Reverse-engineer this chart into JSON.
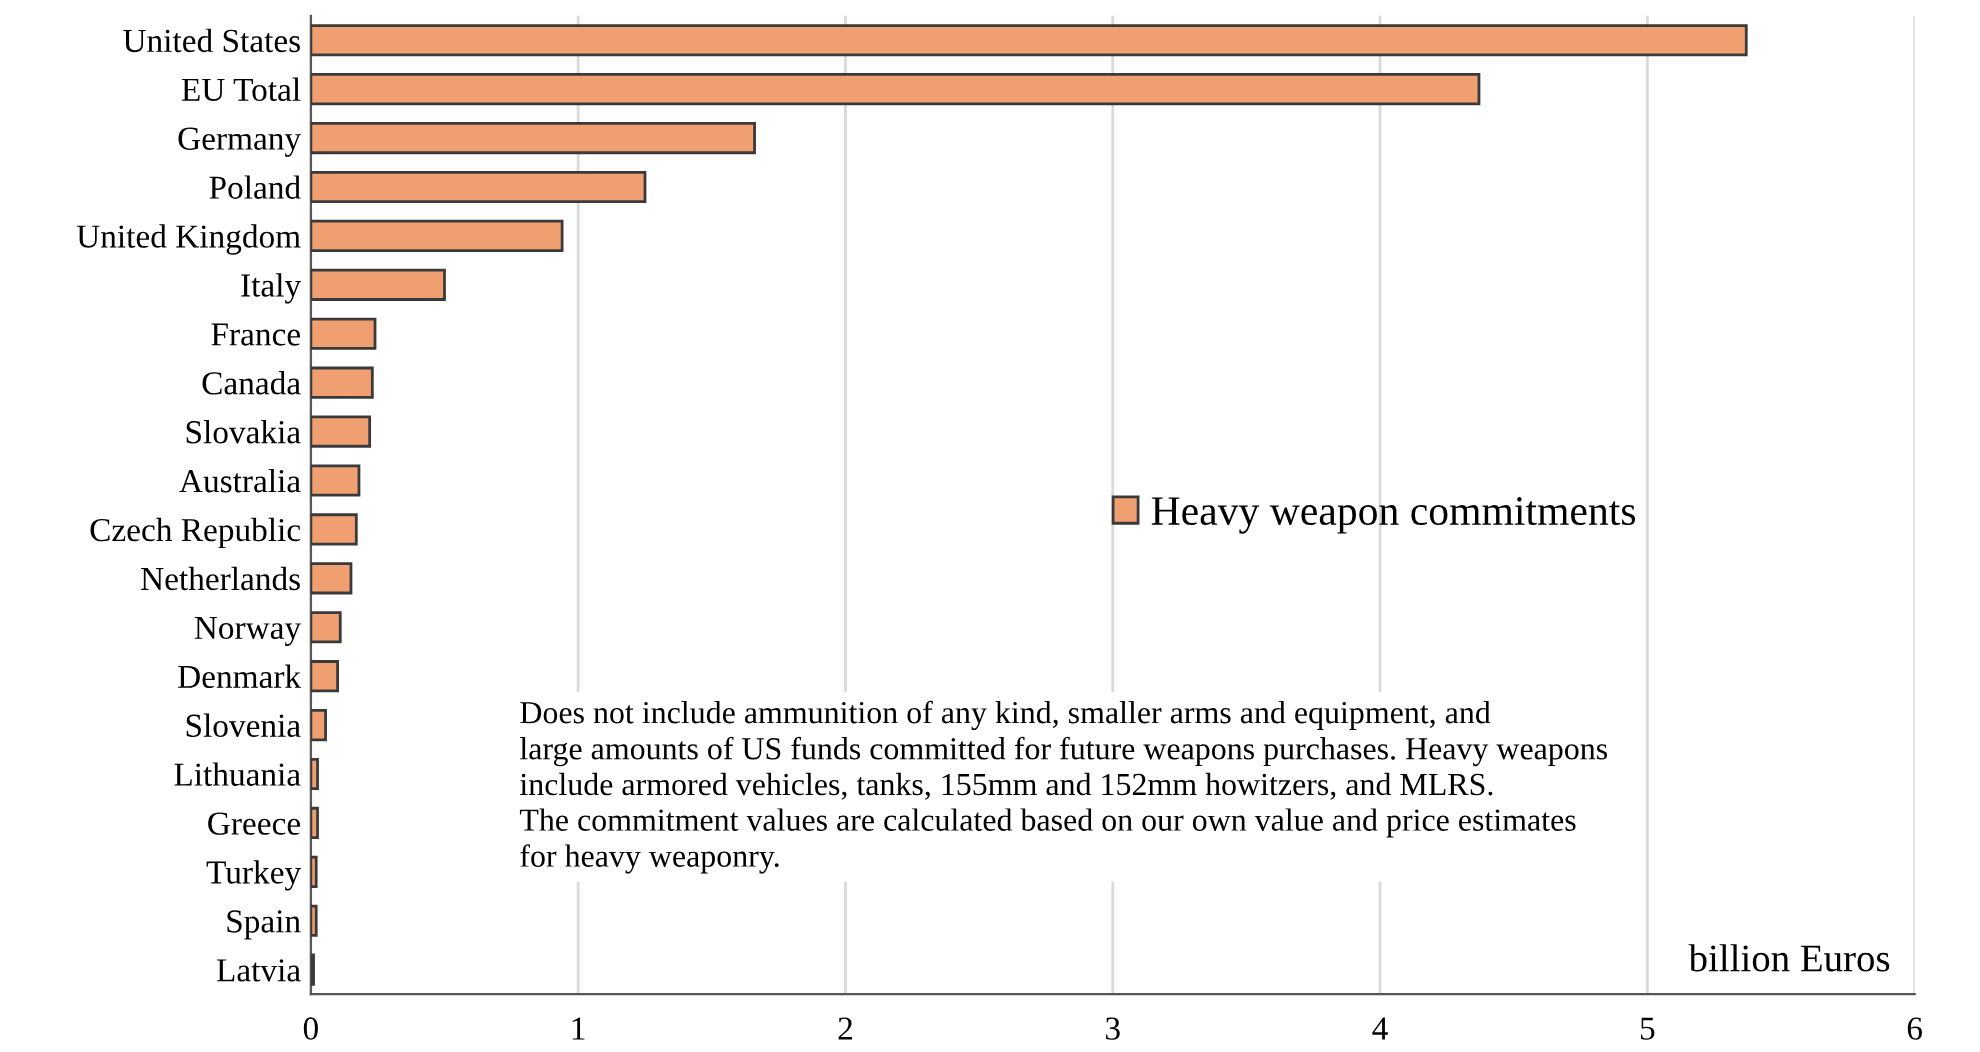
{
  "chart_data": {
    "type": "bar",
    "orientation": "horizontal",
    "categories": [
      "United States",
      "EU Total",
      "Germany",
      "Poland",
      "United Kingdom",
      "Italy",
      "France",
      "Canada",
      "Slovakia",
      "Australia",
      "Czech Republic",
      "Netherlands",
      "Norway",
      "Denmark",
      "Slovenia",
      "Lithuania",
      "Greece",
      "Turkey",
      "Spain",
      "Latvia"
    ],
    "series": [
      {
        "name": "Heavy weapon commitments",
        "color": "#f0a070",
        "values": [
          5.37,
          4.37,
          1.66,
          1.25,
          0.94,
          0.5,
          0.24,
          0.23,
          0.22,
          0.18,
          0.17,
          0.15,
          0.11,
          0.1,
          0.055,
          0.025,
          0.025,
          0.02,
          0.02,
          0.01
        ]
      }
    ],
    "xlim": [
      0,
      6
    ],
    "xticks": [
      0,
      1,
      2,
      3,
      4,
      5,
      6
    ],
    "xlabel": "billion Euros",
    "annotations": [
      "Does not include ammunition of any kind, smaller arms and equipment, and\nlarge amounts of US funds committed for future weapons purchases. Heavy weapons\ninclude armored vehicles, tanks, 155mm and 152mm howitzers, and MLRS.\nThe commitment values are calculated based on our own value and price estimates\nfor heavy weaponry."
    ],
    "grid": "x",
    "legend": "right"
  }
}
